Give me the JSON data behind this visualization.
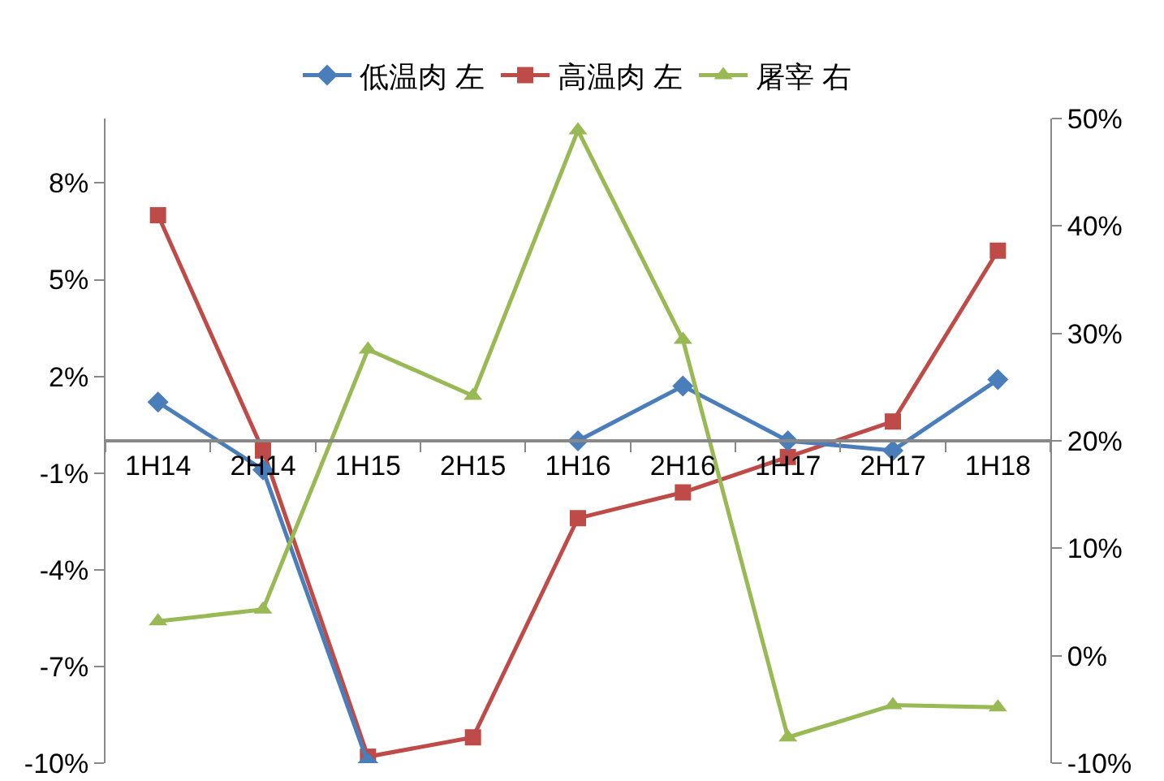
{
  "chart_data": {
    "type": "line",
    "categories": [
      "1H14",
      "2H14",
      "1H15",
      "2H15",
      "1H16",
      "2H16",
      "1H17",
      "2H17",
      "1H18"
    ],
    "series": [
      {
        "name": "低温肉 左",
        "color": "#4a7ebb",
        "marker": "diamond",
        "values": [
          1.2,
          -0.9,
          -10,
          null,
          0,
          1.7,
          0,
          -0.3,
          1.9
        ]
      },
      {
        "name": "高温肉 左",
        "color": "#be4b48",
        "marker": "square",
        "values": [
          7.0,
          -0.3,
          -9.8,
          -9.2,
          -2.4,
          -1.6,
          -0.5,
          0.6,
          5.9
        ]
      },
      {
        "name": "屠宰 右",
        "color": "#98b954",
        "marker": "triangle",
        "axis": "y2",
        "values": [
          3.2,
          4.3,
          28.5,
          24.2,
          48.9,
          29.4,
          -7.6,
          -4.6,
          -4.8
        ]
      }
    ],
    "ylim": [
      -10,
      10
    ],
    "yticks": [
      {
        "value": 8,
        "label": "8%"
      },
      {
        "value": 5,
        "label": "5%"
      },
      {
        "value": 2,
        "label": "2%"
      },
      {
        "value": -1,
        "label": "-1%"
      },
      {
        "value": -4,
        "label": "-4%"
      },
      {
        "value": -7,
        "label": "-7%"
      },
      {
        "value": -10,
        "label": "-10%"
      }
    ],
    "y2lim": [
      -10,
      50
    ],
    "y2ticks": [
      {
        "value": 50,
        "label": "50%"
      },
      {
        "value": 40,
        "label": "40%"
      },
      {
        "value": 30,
        "label": "30%"
      },
      {
        "value": 20,
        "label": "20%"
      },
      {
        "value": 10,
        "label": "10%"
      },
      {
        "value": 0,
        "label": "0%"
      },
      {
        "value": -10,
        "label": "-10%"
      }
    ],
    "grid": false,
    "legend": "top",
    "line_style": "solid"
  }
}
